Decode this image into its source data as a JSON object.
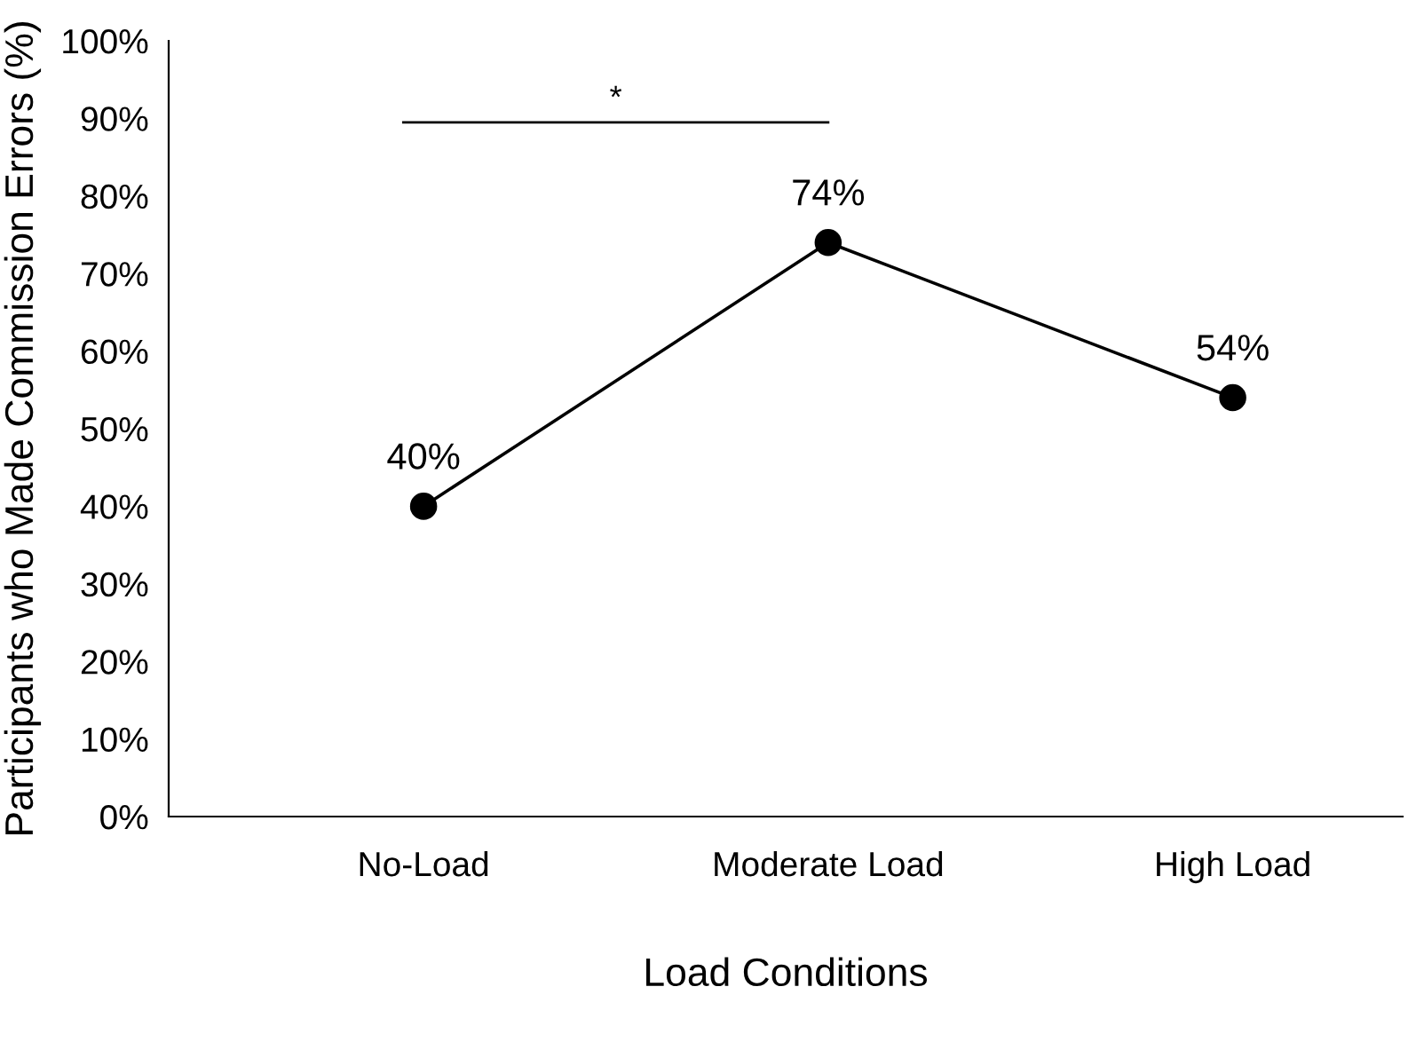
{
  "chart_data": {
    "type": "line",
    "xlabel": "Load Conditions",
    "ylabel": "Participants who Made Commission Errors (%)",
    "categories": [
      "No-Load",
      "Moderate Load",
      "High Load"
    ],
    "series": [
      {
        "color": "#000000",
        "values": [
          40,
          74,
          54
        ],
        "value_labels": [
          "40%",
          "74%",
          "54%"
        ]
      }
    ],
    "marker": "circle",
    "line_style": "solid",
    "ylim": [
      0,
      100
    ],
    "yticks": [
      {
        "value": 0,
        "label": "0%"
      },
      {
        "value": 10,
        "label": "10%"
      },
      {
        "value": 20,
        "label": "20%"
      },
      {
        "value": 30,
        "label": "30%"
      },
      {
        "value": 40,
        "label": "40%"
      },
      {
        "value": 50,
        "label": "50%"
      },
      {
        "value": 60,
        "label": "60%"
      },
      {
        "value": 70,
        "label": "70%"
      },
      {
        "value": 80,
        "label": "80%"
      },
      {
        "value": 90,
        "label": "90%"
      },
      {
        "value": 100,
        "label": "100%"
      }
    ],
    "grid": false,
    "legend": false,
    "annotations": [
      "*"
    ]
  }
}
